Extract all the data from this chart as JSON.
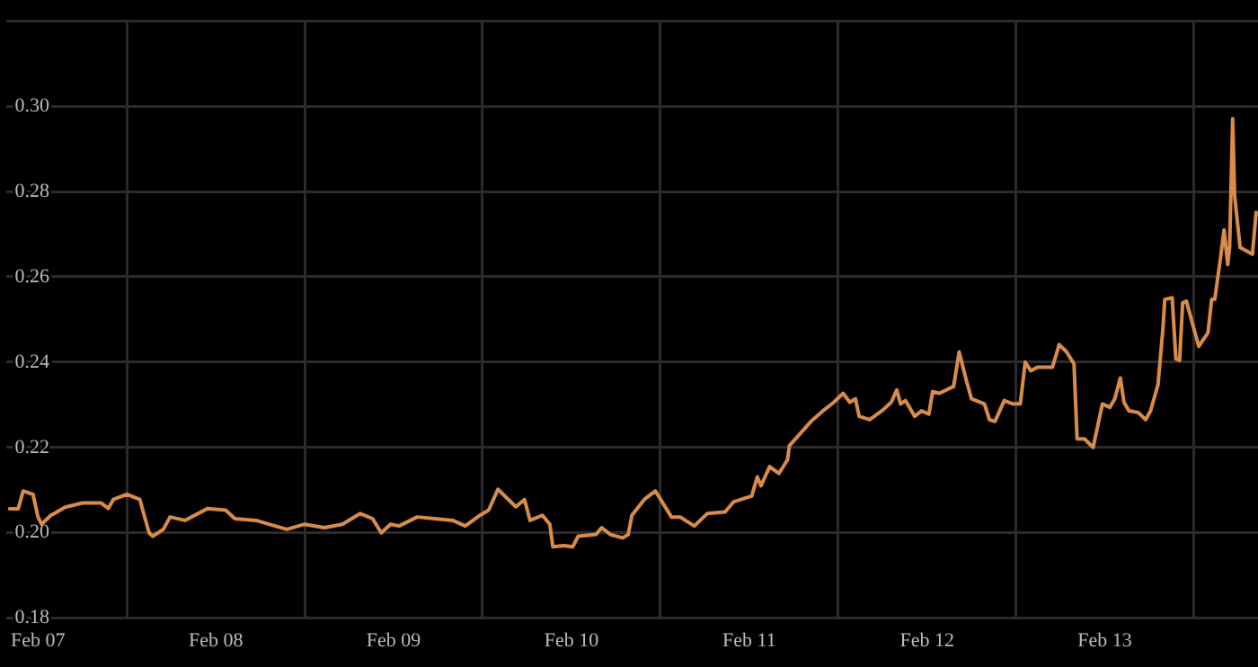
{
  "chart_data": {
    "type": "line",
    "x": [
      "--02-06T20:10",
      "--02-06T21:20",
      "--02-06T22:00",
      "--02-06T23:20",
      "--02-07T00:00",
      "--02-07T00:30",
      "--02-07T01:40",
      "--02-07T03:40",
      "--02-07T06:00",
      "--02-07T08:30",
      "--02-07T09:30",
      "--02-07T10:10",
      "--02-07T12:00",
      "--02-07T13:45",
      "--02-07T15:00",
      "--02-07T15:30",
      "--02-07T16:55",
      "--02-07T17:50",
      "--02-07T19:50",
      "--02-07T22:55",
      "--02-08T01:20",
      "--02-08T02:35",
      "--02-08T05:25",
      "--02-08T09:35",
      "--02-08T12:00",
      "--02-08T14:40",
      "--02-08T17:05",
      "--02-08T19:30",
      "--02-08T21:10",
      "--02-08T22:20",
      "--02-08T23:35",
      "--02-09T00:45",
      "--02-09T03:10",
      "--02-09T05:35",
      "--02-09T08:00",
      "--02-09T09:40",
      "--02-09T11:40",
      "--02-09T12:50",
      "--02-09T14:05",
      "--02-09T15:15",
      "--02-09T16:30",
      "--02-09T17:40",
      "--02-09T18:25",
      "--02-09T20:05",
      "--02-09T21:05",
      "--02-09T21:30",
      "--02-09T23:00",
      "--02-10T00:10",
      "--02-10T00:55",
      "--02-10T03:20",
      "--02-10T04:05",
      "--02-10T05:15",
      "--02-10T06:55",
      "--02-10T07:40",
      "--02-10T08:10",
      "--02-10T09:50",
      "--02-10T11:20",
      "--02-10T13:30",
      "--02-10T14:40",
      "--02-10T16:35",
      "--02-10T18:20",
      "--02-10T20:45",
      "--02-10T21:55",
      "--02-11T00:20",
      "--02-11T01:05",
      "--02-11T01:35",
      "--02-11T02:45",
      "--02-11T04:00",
      "--02-11T05:10",
      "--02-11T05:25",
      "--02-11T08:20",
      "--02-11T10:15",
      "--02-11T11:25",
      "--02-11T12:40",
      "--02-11T13:35",
      "--02-11T14:20",
      "--02-11T14:50",
      "--02-11T16:15",
      "--02-11T17:55",
      "--02-11T19:10",
      "--02-11T19:55",
      "--02-11T20:25",
      "--02-11T21:05",
      "--02-11T22:20",
      "--02-11T23:15",
      "--02-12T00:15",
      "--02-12T00:45",
      "--02-12T01:40",
      "--02-12T03:35",
      "--02-12T04:20",
      "--02-12T05:20",
      "--02-12T06:00",
      "--02-12T07:45",
      "--02-12T08:25",
      "--02-12T09:10",
      "--02-12T10:25",
      "--02-12T11:35",
      "--02-12T12:35",
      "--02-12T13:15",
      "--02-12T14:00",
      "--02-12T14:55",
      "--02-12T16:55",
      "--02-12T17:50",
      "--02-12T18:50",
      "--02-12T19:50",
      "--02-12T20:15",
      "--02-12T21:15",
      "--02-12T22:25",
      "--02-12T23:40",
      "--02-13T00:40",
      "--02-13T01:20",
      "--02-13T02:05",
      "--02-13T02:35",
      "--02-13T03:15",
      "--02-13T04:30",
      "--02-13T05:30",
      "--02-13T06:10",
      "--02-13T07:10",
      "--02-13T07:50",
      "--02-13T08:05",
      "--02-13T09:05",
      "--02-13T09:35",
      "--02-13T10:05",
      "--02-13T10:30",
      "--02-13T11:00",
      "--02-13T12:40",
      "--02-13T13:55",
      "--02-13T14:25",
      "--02-13T14:50",
      "--02-13T15:35",
      "--02-13T16:05",
      "--02-13T16:35",
      "--02-13T16:50",
      "--02-13T17:15",
      "--02-13T17:30",
      "--02-13T18:15",
      "--02-13T19:55",
      "--02-13T20:25"
    ],
    "series": [
      {
        "color": "#d98c4a",
        "values": [
          0.2056,
          0.2056,
          0.2098,
          0.209,
          0.2037,
          0.202,
          0.204,
          0.206,
          0.207,
          0.207,
          0.2057,
          0.2078,
          0.209,
          0.2078,
          0.2,
          0.1992,
          0.2008,
          0.2037,
          0.2029,
          0.2057,
          0.2053,
          0.2033,
          0.2029,
          0.2008,
          0.202,
          0.2012,
          0.202,
          0.2045,
          0.2033,
          0.2,
          0.202,
          0.2016,
          0.2037,
          0.2033,
          0.2029,
          0.2016,
          0.2041,
          0.2053,
          0.2102,
          0.2082,
          0.2061,
          0.2078,
          0.2029,
          0.2041,
          0.202,
          0.1967,
          0.197,
          0.1967,
          0.1992,
          0.1996,
          0.2012,
          0.1996,
          0.1988,
          0.1996,
          0.2041,
          0.2078,
          0.2098,
          0.2037,
          0.2037,
          0.2016,
          0.2045,
          0.2049,
          0.2073,
          0.2086,
          0.2131,
          0.211,
          0.2155,
          0.2139,
          0.2171,
          0.2204,
          0.2261,
          0.229,
          0.2306,
          0.2327,
          0.2306,
          0.2314,
          0.2273,
          0.2265,
          0.2286,
          0.2306,
          0.2335,
          0.2302,
          0.231,
          0.2273,
          0.2286,
          0.2278,
          0.2331,
          0.2327,
          0.2343,
          0.2424,
          0.2355,
          0.2314,
          0.2302,
          0.2265,
          0.2261,
          0.231,
          0.2302,
          0.2302,
          0.24,
          0.238,
          0.2388,
          0.2388,
          0.2441,
          0.2424,
          0.2396,
          0.222,
          0.222,
          0.22,
          0.2302,
          0.2294,
          0.2314,
          0.2363,
          0.2306,
          0.2286,
          0.2282,
          0.2265,
          0.2286,
          0.2347,
          0.2478,
          0.2547,
          0.2551,
          0.2408,
          0.2404,
          0.2539,
          0.2543,
          0.2437,
          0.2469,
          0.2547,
          0.2547,
          0.2641,
          0.271,
          0.2629,
          0.2669,
          0.2971,
          0.2792,
          0.2669,
          0.2653,
          0.2751
        ]
      }
    ],
    "xlim": [
      "--02-06T19:40",
      "--02-13T20:40"
    ],
    "xticks": [
      {
        "value": "--02-07",
        "label": "Feb 07"
      },
      {
        "value": "--02-07T12:00",
        "label": null
      },
      {
        "value": "--02-08",
        "label": "Feb 08"
      },
      {
        "value": "--02-08T12:00",
        "label": null
      },
      {
        "value": "--02-09",
        "label": "Feb 09"
      },
      {
        "value": "--02-09T12:00",
        "label": null
      },
      {
        "value": "--02-10",
        "label": "Feb 10"
      },
      {
        "value": "--02-10T12:00",
        "label": null
      },
      {
        "value": "--02-11",
        "label": "Feb 11"
      },
      {
        "value": "--02-11T12:00",
        "label": null
      },
      {
        "value": "--02-12",
        "label": "Feb 12"
      },
      {
        "value": "--02-12T12:00",
        "label": null
      },
      {
        "value": "--02-13",
        "label": "Feb 13"
      },
      {
        "value": "--02-13T12:00",
        "label": null
      }
    ],
    "ylim": [
      0.18,
      0.32
    ],
    "yticks": [
      {
        "value": 0.18,
        "label": "0.18"
      },
      {
        "value": 0.2,
        "label": "0.20"
      },
      {
        "value": 0.22,
        "label": "0.22"
      },
      {
        "value": 0.24,
        "label": "0.24"
      },
      {
        "value": 0.26,
        "label": "0.26"
      },
      {
        "value": 0.28,
        "label": "0.28"
      },
      {
        "value": 0.3,
        "label": "0.30"
      },
      {
        "value": 0.32,
        "label": null
      }
    ],
    "grid": true,
    "legend": false,
    "marker": "none",
    "line_style": "solid"
  }
}
